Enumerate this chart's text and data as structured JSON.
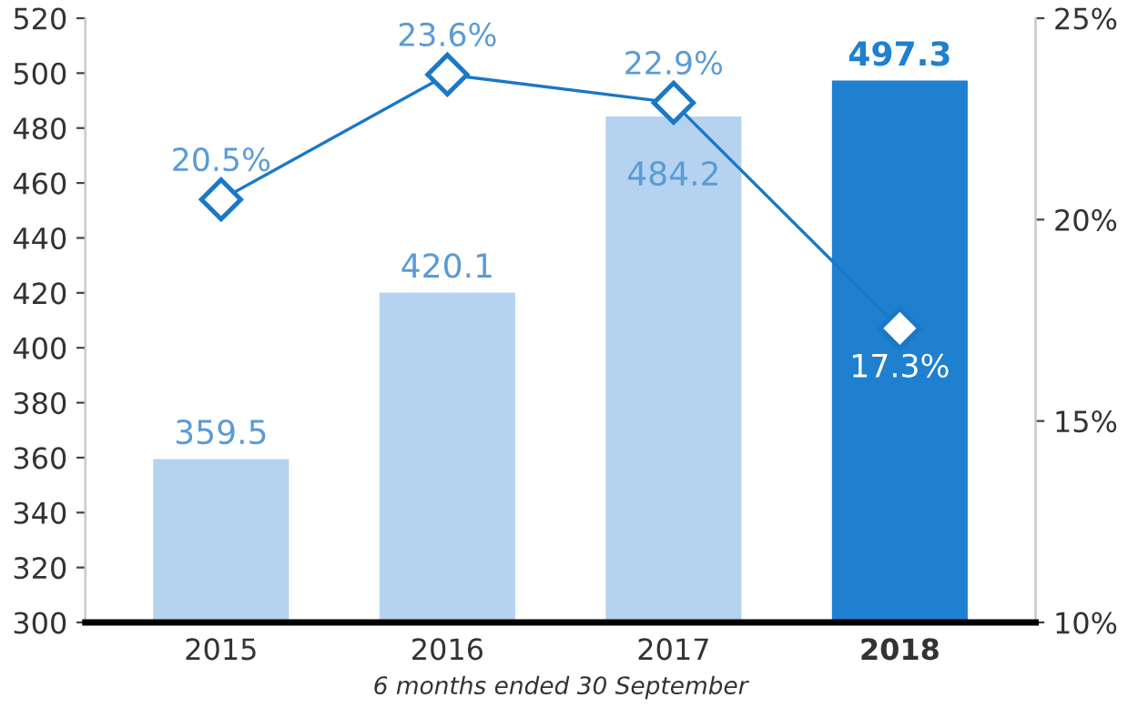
{
  "chart_data": {
    "type": "bar",
    "xlabel": "6 months ended 30 September",
    "categories": [
      "2015",
      "2016",
      "2017",
      "2018"
    ],
    "series": [
      {
        "colors": [
          "#b5d3f0",
          "#b5d3f0",
          "#b5d3f0",
          "#1f80cf"
        ],
        "values": [
          359.5,
          420.1,
          484.2,
          497.3
        ],
        "value_labels": [
          "359.5",
          "420.1",
          "484.2",
          "497.3"
        ]
      },
      {
        "type": "line",
        "axis": "y2",
        "color": "#1a78c6",
        "marker": "diamond",
        "values": [
          20.5,
          23.6,
          22.9,
          17.3
        ],
        "value_labels": [
          "20.5%",
          "23.6%",
          "22.9%",
          "17.3%"
        ]
      }
    ],
    "ylim": [
      300,
      520
    ],
    "yticks": [
      300,
      320,
      340,
      360,
      380,
      400,
      420,
      440,
      460,
      480,
      500,
      520
    ],
    "y2lim": [
      10,
      25
    ],
    "y2ticks": [
      {
        "value": 10,
        "label": "10%"
      },
      {
        "value": 15,
        "label": "15%"
      },
      {
        "value": 20,
        "label": "20%"
      },
      {
        "value": 25,
        "label": "25%"
      }
    ],
    "grid": false,
    "legend": false
  }
}
